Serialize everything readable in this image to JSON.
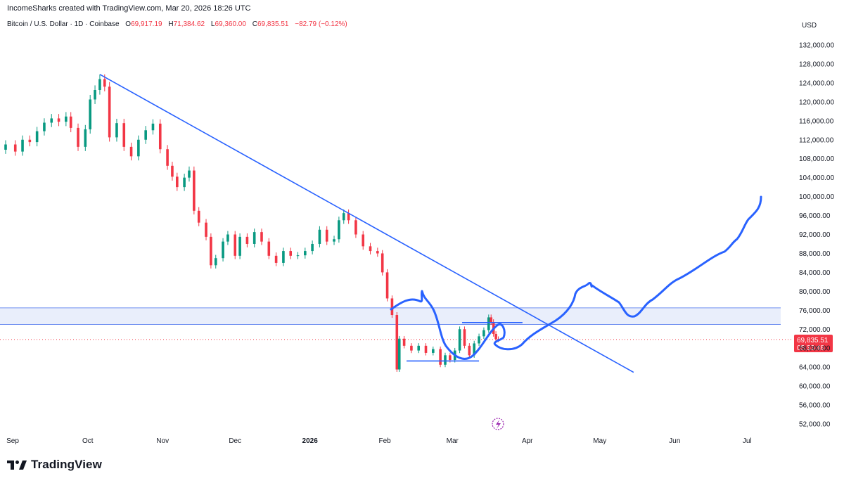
{
  "header": {
    "credit": "IncomeSharks created with TradingView.com, Mar 20, 2026 18:26 UTC",
    "symbol": "Bitcoin / U.S. Dollar · 1D · Coinbase",
    "open_label": "O",
    "open": "69,917.19",
    "high_label": "H",
    "high": "71,384.62",
    "low_label": "L",
    "low": "69,360.00",
    "close_label": "C",
    "close": "69,835.51",
    "change": "−82.79 (−0.12%)",
    "currency": "USD"
  },
  "price_tag": {
    "price": "69,835.51",
    "countdown": "05:33:48"
  },
  "footer": {
    "brand": "TradingView",
    "logo": "tradingview-logo-icon"
  },
  "colors": {
    "up": "#089981",
    "down": "#f23645",
    "drawing": "#2962ff",
    "zone": "#e9eefb",
    "tag": "#f23645"
  },
  "chart_data": {
    "type": "candlestick",
    "x_start": "2025-08-28",
    "x_end": "2026-07-12",
    "ylim": [
      50000,
      136000
    ],
    "y_ticks": [
      52000,
      56000,
      60000,
      64000,
      68000,
      72000,
      76000,
      80000,
      84000,
      88000,
      92000,
      96000,
      100000,
      104000,
      108000,
      112000,
      116000,
      120000,
      124000,
      128000,
      132000
    ],
    "y_tick_labels": [
      "52,000.00",
      "56,000.00",
      "60,000.00",
      "64,000.00",
      "68,000.00",
      "72,000.00",
      "76,000.00",
      "80,000.00",
      "84,000.00",
      "88,000.00",
      "92,000.00",
      "96,000.00",
      "100,000.00",
      "104,000.00",
      "108,000.00",
      "112,000.00",
      "116,000.00",
      "120,000.00",
      "124,000.00",
      "128,000.00",
      "132,000.00"
    ],
    "x_ticks": [
      {
        "label": "Sep",
        "date": "2025-09-01",
        "bold": false
      },
      {
        "label": "Oct",
        "date": "2025-10-01",
        "bold": false
      },
      {
        "label": "Nov",
        "date": "2025-11-01",
        "bold": false
      },
      {
        "label": "Dec",
        "date": "2025-12-01",
        "bold": false
      },
      {
        "label": "2026",
        "date": "2026-01-01",
        "bold": true
      },
      {
        "label": "Feb",
        "date": "2026-02-01",
        "bold": false
      },
      {
        "label": "Mar",
        "date": "2026-03-01",
        "bold": false
      },
      {
        "label": "Apr",
        "date": "2026-04-01",
        "bold": false
      },
      {
        "label": "May",
        "date": "2026-05-01",
        "bold": false
      },
      {
        "label": "Jun",
        "date": "2026-06-01",
        "bold": false
      },
      {
        "label": "Jul",
        "date": "2026-07-01",
        "bold": false
      }
    ],
    "candles": [
      {
        "date": "2025-08-28",
        "close": 111000
      },
      {
        "date": "2025-09-01",
        "close": 109500
      },
      {
        "date": "2025-09-04",
        "close": 112000
      },
      {
        "date": "2025-09-07",
        "close": 111500
      },
      {
        "date": "2025-09-10",
        "close": 113800
      },
      {
        "date": "2025-09-13",
        "close": 115600
      },
      {
        "date": "2025-09-16",
        "close": 116500
      },
      {
        "date": "2025-09-19",
        "close": 115800
      },
      {
        "date": "2025-09-22",
        "close": 116900
      },
      {
        "date": "2025-09-24",
        "close": 114500
      },
      {
        "date": "2025-09-27",
        "close": 110500
      },
      {
        "date": "2025-09-30",
        "close": 114200
      },
      {
        "date": "2025-10-02",
        "close": 120500
      },
      {
        "date": "2025-10-04",
        "close": 122500
      },
      {
        "date": "2025-10-06",
        "close": 124800
      },
      {
        "date": "2025-10-08",
        "close": 123200
      },
      {
        "date": "2025-10-10",
        "close": 112500
      },
      {
        "date": "2025-10-13",
        "close": 115500
      },
      {
        "date": "2025-10-16",
        "close": 110500
      },
      {
        "date": "2025-10-19",
        "close": 108500
      },
      {
        "date": "2025-10-22",
        "close": 112000
      },
      {
        "date": "2025-10-25",
        "close": 114000
      },
      {
        "date": "2025-10-28",
        "close": 115400
      },
      {
        "date": "2025-10-31",
        "close": 110000
      },
      {
        "date": "2025-11-03",
        "close": 106500
      },
      {
        "date": "2025-11-05",
        "close": 104200
      },
      {
        "date": "2025-11-07",
        "close": 102000
      },
      {
        "date": "2025-11-10",
        "close": 104000
      },
      {
        "date": "2025-11-12",
        "close": 105500
      },
      {
        "date": "2025-11-14",
        "close": 97000
      },
      {
        "date": "2025-11-16",
        "close": 94500
      },
      {
        "date": "2025-11-19",
        "close": 91500
      },
      {
        "date": "2025-11-21",
        "close": 85500
      },
      {
        "date": "2025-11-23",
        "close": 87000
      },
      {
        "date": "2025-11-26",
        "close": 90500
      },
      {
        "date": "2025-11-28",
        "close": 92000
      },
      {
        "date": "2025-12-01",
        "close": 87500
      },
      {
        "date": "2025-12-03",
        "close": 91500
      },
      {
        "date": "2025-12-06",
        "close": 90000
      },
      {
        "date": "2025-12-09",
        "close": 92500
      },
      {
        "date": "2025-12-12",
        "close": 90500
      },
      {
        "date": "2025-12-15",
        "close": 87500
      },
      {
        "date": "2025-12-18",
        "close": 86000
      },
      {
        "date": "2025-12-21",
        "close": 88500
      },
      {
        "date": "2025-12-24",
        "close": 87500
      },
      {
        "date": "2025-12-27",
        "close": 87600
      },
      {
        "date": "2025-12-30",
        "close": 88500
      },
      {
        "date": "2026-01-02",
        "close": 90000
      },
      {
        "date": "2026-01-05",
        "close": 93000
      },
      {
        "date": "2026-01-08",
        "close": 90500
      },
      {
        "date": "2026-01-11",
        "close": 91000
      },
      {
        "date": "2026-01-13",
        "close": 95000
      },
      {
        "date": "2026-01-15",
        "close": 96500
      },
      {
        "date": "2026-01-17",
        "close": 95000
      },
      {
        "date": "2026-01-20",
        "close": 92000
      },
      {
        "date": "2026-01-23",
        "close": 89500
      },
      {
        "date": "2026-01-26",
        "close": 88500
      },
      {
        "date": "2026-01-29",
        "close": 88000
      },
      {
        "date": "2026-01-31",
        "close": 84000
      },
      {
        "date": "2026-02-02",
        "close": 78500
      },
      {
        "date": "2026-02-04",
        "close": 75000
      },
      {
        "date": "2026-02-06",
        "close": 63500
      },
      {
        "date": "2026-02-07",
        "close": 70000
      },
      {
        "date": "2026-02-09",
        "close": 68500
      },
      {
        "date": "2026-02-12",
        "close": 67500
      },
      {
        "date": "2026-02-15",
        "close": 68500
      },
      {
        "date": "2026-02-18",
        "close": 67000
      },
      {
        "date": "2026-02-21",
        "close": 67800
      },
      {
        "date": "2026-02-24",
        "close": 64500
      },
      {
        "date": "2026-02-26",
        "close": 66500
      },
      {
        "date": "2026-02-28",
        "close": 65500
      },
      {
        "date": "2026-03-02",
        "close": 67500
      },
      {
        "date": "2026-03-04",
        "close": 72000
      },
      {
        "date": "2026-03-06",
        "close": 68500
      },
      {
        "date": "2026-03-08",
        "close": 66500
      },
      {
        "date": "2026-03-10",
        "close": 69000
      },
      {
        "date": "2026-03-12",
        "close": 70500
      },
      {
        "date": "2026-03-14",
        "close": 71800
      },
      {
        "date": "2026-03-16",
        "close": 74500
      },
      {
        "date": "2026-03-17",
        "close": 73500
      },
      {
        "date": "2026-03-18",
        "close": 71000
      },
      {
        "date": "2026-03-19",
        "close": 69918
      },
      {
        "date": "2026-03-20",
        "close": 69835.51
      }
    ],
    "current_price": 69835.51,
    "zone": {
      "top": 76500,
      "bottom": 73000
    },
    "trendline": {
      "start": {
        "date": "2025-10-06",
        "price": 125800
      },
      "end": {
        "date": "2026-05-15",
        "price": 62900
      }
    },
    "range_box": {
      "top": {
        "start": "2026-03-05",
        "end": "2026-03-30",
        "price": 73400
      },
      "bottom": {
        "start": "2026-02-10",
        "end": "2026-03-12",
        "price": 65300
      }
    }
  }
}
